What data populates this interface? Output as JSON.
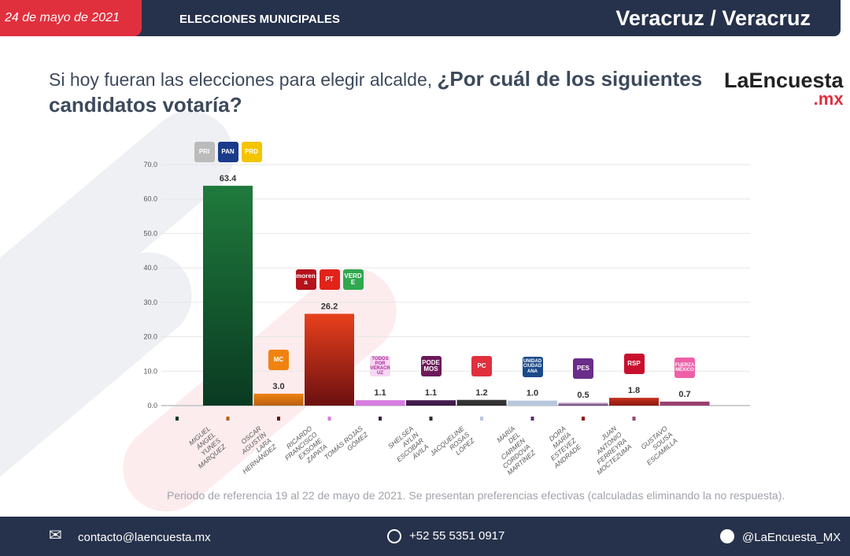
{
  "header": {
    "date": "24 de mayo de 2021",
    "section": "ELECCIONES MUNICIPALES",
    "location": "Veracruz / Veracruz"
  },
  "question": {
    "part1": "Si hoy fueran las elecciones para elegir alcalde, ",
    "part2": "¿Por cuál de los siguientes candidatos votaría?"
  },
  "brand": {
    "name": "LaEncuesta",
    "suffix": ".mx"
  },
  "chart_data": {
    "type": "bar",
    "ylim": [
      0,
      70
    ],
    "yticks": [
      "0.0",
      "10.0",
      "20.0",
      "30.0",
      "40.0",
      "50.0",
      "60.0",
      "70.0"
    ],
    "grid": true,
    "categories": [
      "MIGUEL ÁNGEL YUNES MARQUEZ",
      "OSCAR AGUSTÍN LARA HERNÁNDEZ",
      "RICARDO FRANCISCO EXSOME ZAPATA",
      "TOMÁS ROJAS GÓMEZ",
      "SHELSEA AYLIN ESCOBAR ÁVILA",
      "JACQUELINE ROSAS LÓPEZ",
      "MARÍA DEL CARMEN CORDOVA MARTÍNEZ",
      "DORA MARÍA ESTEVEZ ANDRADE",
      "JUAN ANTONIO FERREYRA MOCTEZUMA",
      "GUSTAVO SOUSA ESCAMILLA"
    ],
    "values": [
      63.4,
      3.0,
      26.2,
      1.1,
      1.1,
      1.2,
      1.0,
      0.5,
      1.8,
      0.7,
      null
    ],
    "labels": [
      "63.4",
      "3.0",
      "26.2",
      "1.1",
      "1.1",
      "1.2",
      "1.0",
      "0.5",
      "1.8",
      "0.7",
      ""
    ],
    "colors": [
      [
        "#1f7a3c",
        "#0a3a22"
      ],
      [
        "#f0820f",
        "#b85f10"
      ],
      [
        "#e8401c",
        "#6b1010"
      ],
      [
        "#d77be0",
        "#d77be0"
      ],
      [
        "#4a1f55",
        "#3a1845"
      ],
      [
        "#3a3a3a",
        "#2a2a2a"
      ],
      [
        "#b8c8dc",
        "#b8c8dc"
      ],
      [
        "#efe0f0",
        "#5a2a6a"
      ],
      [
        "#c8301e",
        "#8a1a10"
      ],
      [
        "#9a4070",
        "#9a4070"
      ],
      [
        "#cccccc",
        "#cccccc"
      ]
    ],
    "parties": [
      [
        "PRI",
        "PAN",
        "PRD"
      ],
      [
        "MC"
      ],
      [
        "morena",
        "PT",
        "VERDE"
      ],
      [
        "TODOS POR VERACRUZ"
      ],
      [
        "PODEMOS"
      ],
      [
        "PC"
      ],
      [
        "UNIDAD CIUDADANA"
      ],
      [
        "PES"
      ],
      [
        "RSP"
      ],
      [
        "FUERZA MÉXICO"
      ],
      []
    ],
    "party_colors": [
      [
        "#bbbbbb",
        "#1a3a8a",
        "#f5c400"
      ],
      [
        "#f0820f"
      ],
      [
        "#b5121b",
        "#e2231a",
        "#2fa84f"
      ],
      [
        "#f6d6f2"
      ],
      [
        "#6c1a5a"
      ],
      [
        "#e0303e"
      ],
      [
        "#1a4a8a"
      ],
      [
        "#6a2d8a"
      ],
      [
        "#c8102e"
      ],
      [
        "#ee5fa7"
      ]
    ]
  },
  "note": "Periodo de referencia 19 al 22 de mayo de 2021. Se presentan preferencias efectivas (calculadas eliminando la no respuesta).",
  "footer": {
    "email": "contacto@laencuesta.mx",
    "phone": "+52 55 5351 0917",
    "twitter": "@LaEncuesta_MX"
  }
}
